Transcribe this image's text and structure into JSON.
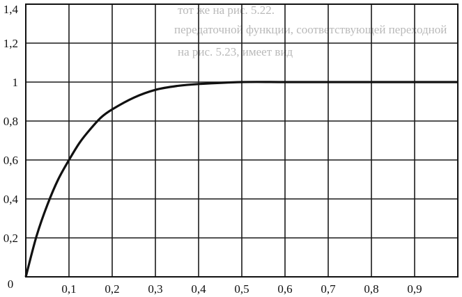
{
  "chart_data": {
    "type": "line",
    "title": "",
    "xlabel": "",
    "ylabel": "",
    "xlim": [
      0,
      1.0
    ],
    "ylim": [
      0,
      1.4
    ],
    "grid": true,
    "x_ticks": [
      "0,1",
      "0,2",
      "0,3",
      "0,4",
      "0,5",
      "0,6",
      "0,7",
      "0,8",
      "0,9"
    ],
    "y_ticks": [
      "0",
      "0,2",
      "0,4",
      "0,6",
      "0,8",
      "1",
      "1,2",
      "1,4"
    ],
    "series": [
      {
        "x": [
          0,
          0.025,
          0.05,
          0.075,
          0.1,
          0.125,
          0.15,
          0.175,
          0.2,
          0.25,
          0.3,
          0.35,
          0.4,
          0.5,
          0.6,
          0.7,
          0.8,
          0.9,
          1.0
        ],
        "y": [
          0,
          0.21,
          0.37,
          0.5,
          0.6,
          0.69,
          0.76,
          0.82,
          0.86,
          0.92,
          0.96,
          0.98,
          0.99,
          1.0,
          1.0,
          1.0,
          1.0,
          1.0,
          1.0
        ]
      }
    ],
    "color": "#111111"
  },
  "background_text": [
    "тот же на рис. 5.22.",
    "передаточной функции, соответствующей переходной",
    "на рис. 5.23, имеет вид"
  ]
}
